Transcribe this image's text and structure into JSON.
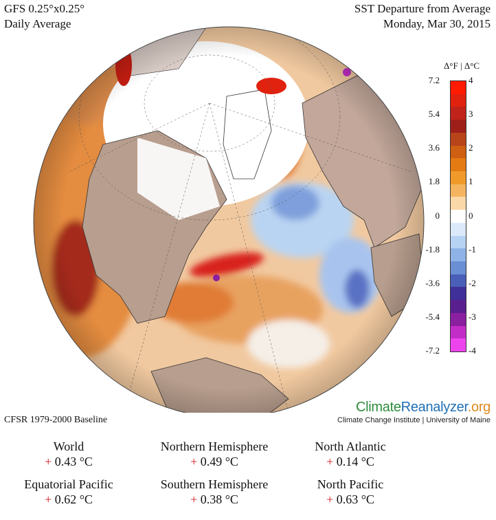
{
  "header": {
    "model": "GFS 0.25°x0.25°",
    "averaging": "Daily Average",
    "product": "SST Departure from Average",
    "date": "Monday, Mar 30, 2015"
  },
  "colorbar": {
    "title": "Δ°F | Δ°C",
    "fahrenheit_labels": [
      "7.2",
      "5.4",
      "3.6",
      "1.8",
      "0",
      "-1.8",
      "-3.6",
      "-5.4",
      "-7.2"
    ],
    "celsius_labels": [
      "4",
      "3",
      "2",
      "1",
      "0",
      "-1",
      "-2",
      "-3",
      "-4"
    ],
    "colors": [
      "#ff1a00",
      "#e0220f",
      "#c0231a",
      "#9e1f1a",
      "#b8441a",
      "#cf5f12",
      "#e47a12",
      "#f09a2a",
      "#f5b560",
      "#fad8a8",
      "#ffffff",
      "#dbe9fb",
      "#b7d3f3",
      "#8fb3e6",
      "#6a8fd4",
      "#4a5fb8",
      "#3e2f99",
      "#5a1f8f",
      "#8a1f9f",
      "#c32dc7",
      "#ee44ee"
    ]
  },
  "branding": {
    "logo_part1": "Climate",
    "logo_part2": "Reanalyzer",
    "logo_part3": ".org",
    "institution": "Climate Change Institute | University of Maine"
  },
  "baseline": "CFSR 1979-2000 Baseline",
  "stats": [
    {
      "region": "World",
      "sign": "+",
      "value": "0.43 °C"
    },
    {
      "region": "Northern Hemisphere",
      "sign": "+",
      "value": "0.49 °C"
    },
    {
      "region": "North Atlantic",
      "sign": "+",
      "value": "0.14 °C"
    },
    {
      "region": "Equatorial Pacific",
      "sign": "+",
      "value": "0.62 °C"
    },
    {
      "region": "Southern Hemisphere",
      "sign": "+",
      "value": "0.38 °C"
    },
    {
      "region": "North Pacific",
      "sign": "+",
      "value": "0.63 °C"
    }
  ]
}
